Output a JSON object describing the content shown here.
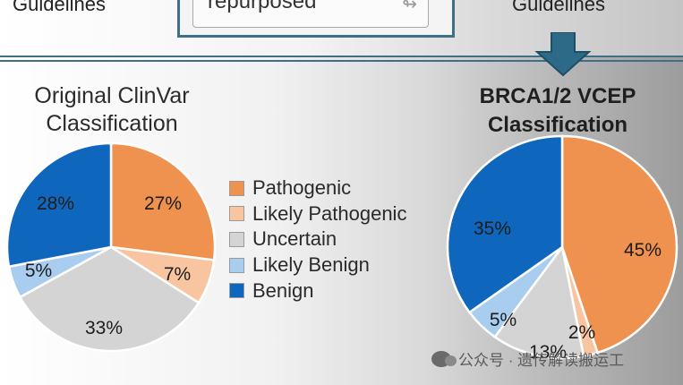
{
  "header": {
    "guidelines_left": "Guidelines",
    "repurposed_label": "repurposed",
    "repurposed_icon": "link-arrow-icon",
    "guidelines_right": "Guidelines"
  },
  "colors": {
    "pathogenic": "#f0924f",
    "likely_pathogenic": "#f8c5a0",
    "uncertain": "#d4d4d4",
    "likely_benign": "#a9cdef",
    "benign": "#0f67bd",
    "accent": "#3f6f86"
  },
  "legend": {
    "items": [
      {
        "label": "Pathogenic",
        "color": "#f0924f"
      },
      {
        "label": "Likely Pathogenic",
        "color": "#f8c5a0"
      },
      {
        "label": "Uncertain",
        "color": "#d4d4d4"
      },
      {
        "label": "Likely Benign",
        "color": "#a9cdef"
      },
      {
        "label": "Benign",
        "color": "#0f67bd"
      }
    ]
  },
  "chart_data": [
    {
      "type": "pie",
      "title": "Original ClinVar Classification",
      "slices": [
        {
          "name": "Pathogenic",
          "value": 27,
          "label": "27%"
        },
        {
          "name": "Likely Pathogenic",
          "value": 7,
          "label": "7%"
        },
        {
          "name": "Uncertain",
          "value": 33,
          "label": "33%"
        },
        {
          "name": "Likely Benign",
          "value": 5,
          "label": "5%"
        },
        {
          "name": "Benign",
          "value": 28,
          "label": "28%"
        }
      ]
    },
    {
      "type": "pie",
      "title": "BRCA1/2 VCEP Classification",
      "slices": [
        {
          "name": "Pathogenic",
          "value": 45,
          "label": "45%"
        },
        {
          "name": "Likely Pathogenic",
          "value": 2,
          "label": "2%"
        },
        {
          "name": "Uncertain",
          "value": 13,
          "label": "13%"
        },
        {
          "name": "Likely Benign",
          "value": 5,
          "label": "5%"
        },
        {
          "name": "Benign",
          "value": 35,
          "label": "35%"
        }
      ]
    }
  ],
  "watermark": {
    "text": "公众号 · 遗传解读搬运工",
    "icon": "wechat-icon"
  }
}
